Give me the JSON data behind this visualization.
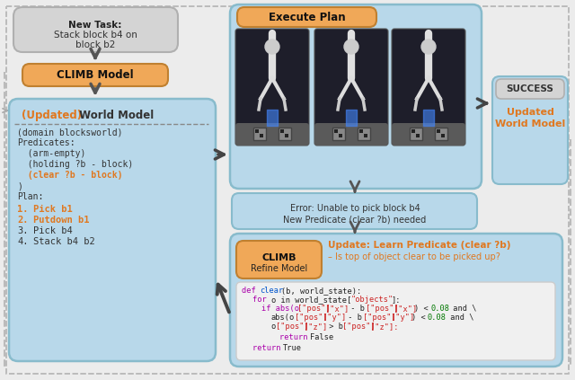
{
  "bg_color": "#ececec",
  "light_blue": "#b8d8ea",
  "orange_fill": "#f0a858",
  "orange_text": "#e07820",
  "gray_box": "#d4d4d4",
  "code_bg": "#eeeeee",
  "border_color": "#aaaaaa",
  "arrow_color": "#444444",
  "blue_border": "#88bbcc",
  "task_bold": "New Task:",
  "task_rest": " Stack block b4 on\nblock b2",
  "climb_model": "CLIMB Model",
  "execute_plan": "Execute Plan",
  "success_line1": "SUCCESS",
  "success_line2": "Updated",
  "success_line3": "World Model",
  "error_line1": "Error: Unable to pick block b4",
  "error_line2": "New Predicate (clear ?b) needed",
  "climb_refine1": "CLIMB",
  "climb_refine2": "Refine Model",
  "update_line1": "Update: Learn Predicate (clear ?b)",
  "update_line2": "– Is top of object clear to be picked up?",
  "wm_title_orange": "(Updated)",
  "wm_title_rest": " World Model",
  "wm_body": [
    "(domain blocksworld)",
    "Predicates:",
    "  (arm-empty)",
    "  (holding ?b - block)",
    "  (clear ?b - block)",
    ")",
    "Plan:"
  ],
  "plan_items": [
    [
      "1.",
      "  Pick b1",
      true
    ],
    [
      "2.",
      "  Putdown b1",
      true
    ],
    [
      "3.",
      "  Pick b4",
      false
    ],
    [
      "4.",
      "  Stack b4 b2",
      false
    ]
  ]
}
